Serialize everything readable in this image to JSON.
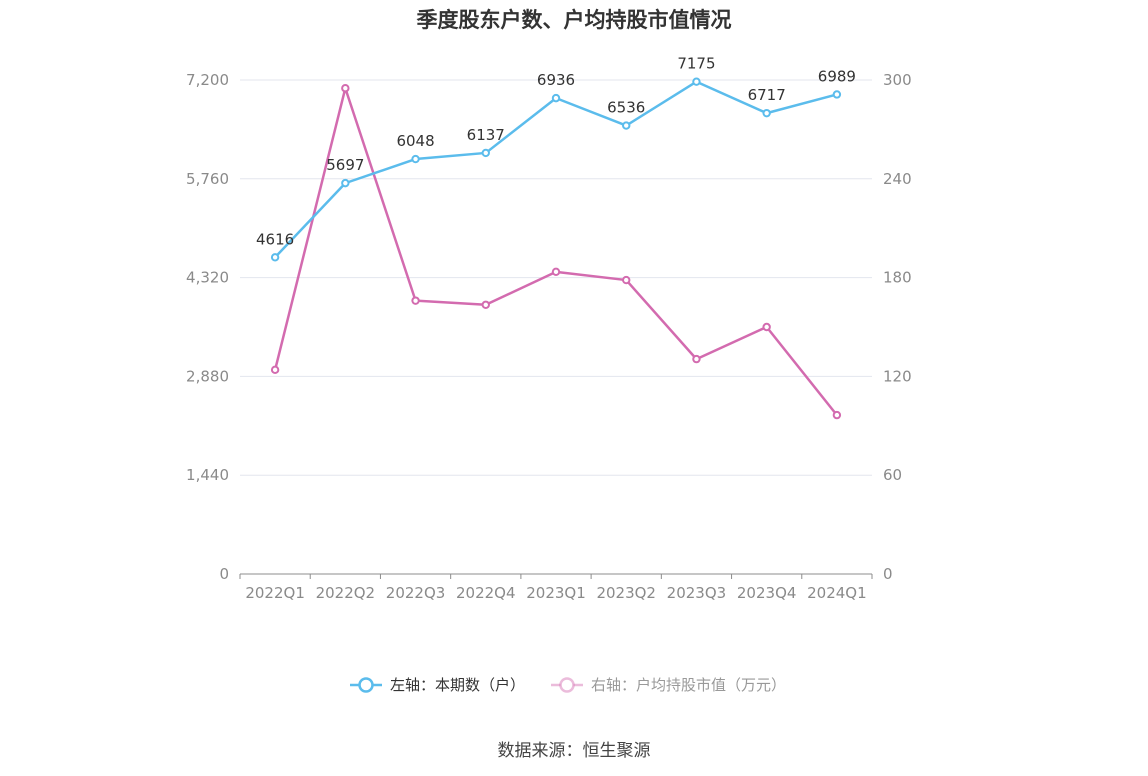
{
  "chart_data": {
    "type": "line",
    "title": "季度股东户数、户均持股市值情况",
    "categories": [
      "2022Q1",
      "2022Q2",
      "2022Q3",
      "2022Q4",
      "2023Q1",
      "2023Q2",
      "2023Q3",
      "2023Q4",
      "2024Q1"
    ],
    "series": [
      {
        "name": "左轴：本期数（户）",
        "axis": "left",
        "color": "#5bbcec",
        "values": [
          4616,
          5697,
          6048,
          6137,
          6936,
          6536,
          7175,
          6717,
          6989
        ],
        "labels": [
          "4616",
          "5697",
          "6048",
          "6137",
          "6936",
          "6536",
          "7175",
          "6717",
          "6989"
        ]
      },
      {
        "name": "右轴：户均持股市值（万元）",
        "axis": "right",
        "color": "#d36baf",
        "values": [
          124,
          295,
          166,
          163.5,
          183.5,
          178.5,
          130.5,
          150,
          96.5
        ]
      }
    ],
    "left_axis": {
      "ylim": [
        0,
        7200
      ],
      "ticks": [
        0,
        1440,
        2880,
        4320,
        5760,
        7200
      ],
      "tick_labels": [
        "0",
        "1,440",
        "2,880",
        "4,320",
        "5,760",
        "7,200"
      ]
    },
    "right_axis": {
      "ylim": [
        0,
        300
      ],
      "ticks": [
        0,
        60,
        120,
        180,
        240,
        300
      ],
      "tick_labels": [
        "0",
        "60",
        "120",
        "180",
        "240",
        "300"
      ]
    },
    "grid": true,
    "legend_position": "bottom"
  },
  "source": "数据来源：恒生聚源"
}
